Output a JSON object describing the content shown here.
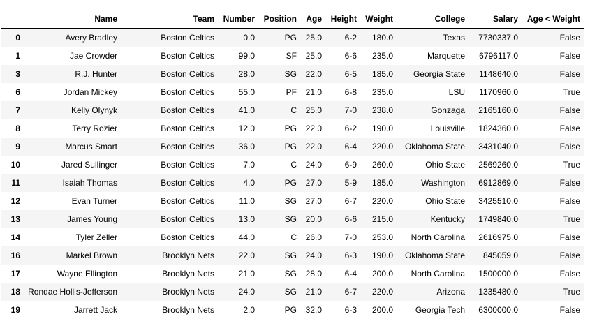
{
  "columns": [
    "",
    "Name",
    "Team",
    "Number",
    "Position",
    "Age",
    "Height",
    "Weight",
    "College",
    "Salary",
    "Age < Weight"
  ],
  "rows": [
    [
      "0",
      "Avery Bradley",
      "Boston Celtics",
      "0.0",
      "PG",
      "25.0",
      "6-2",
      "180.0",
      "Texas",
      "7730337.0",
      "False"
    ],
    [
      "1",
      "Jae Crowder",
      "Boston Celtics",
      "99.0",
      "SF",
      "25.0",
      "6-6",
      "235.0",
      "Marquette",
      "6796117.0",
      "False"
    ],
    [
      "3",
      "R.J. Hunter",
      "Boston Celtics",
      "28.0",
      "SG",
      "22.0",
      "6-5",
      "185.0",
      "Georgia State",
      "1148640.0",
      "False"
    ],
    [
      "6",
      "Jordan Mickey",
      "Boston Celtics",
      "55.0",
      "PF",
      "21.0",
      "6-8",
      "235.0",
      "LSU",
      "1170960.0",
      "True"
    ],
    [
      "7",
      "Kelly Olynyk",
      "Boston Celtics",
      "41.0",
      "C",
      "25.0",
      "7-0",
      "238.0",
      "Gonzaga",
      "2165160.0",
      "False"
    ],
    [
      "8",
      "Terry Rozier",
      "Boston Celtics",
      "12.0",
      "PG",
      "22.0",
      "6-2",
      "190.0",
      "Louisville",
      "1824360.0",
      "False"
    ],
    [
      "9",
      "Marcus Smart",
      "Boston Celtics",
      "36.0",
      "PG",
      "22.0",
      "6-4",
      "220.0",
      "Oklahoma State",
      "3431040.0",
      "False"
    ],
    [
      "10",
      "Jared Sullinger",
      "Boston Celtics",
      "7.0",
      "C",
      "24.0",
      "6-9",
      "260.0",
      "Ohio State",
      "2569260.0",
      "True"
    ],
    [
      "11",
      "Isaiah Thomas",
      "Boston Celtics",
      "4.0",
      "PG",
      "27.0",
      "5-9",
      "185.0",
      "Washington",
      "6912869.0",
      "False"
    ],
    [
      "12",
      "Evan Turner",
      "Boston Celtics",
      "11.0",
      "SG",
      "27.0",
      "6-7",
      "220.0",
      "Ohio State",
      "3425510.0",
      "False"
    ],
    [
      "13",
      "James Young",
      "Boston Celtics",
      "13.0",
      "SG",
      "20.0",
      "6-6",
      "215.0",
      "Kentucky",
      "1749840.0",
      "True"
    ],
    [
      "14",
      "Tyler Zeller",
      "Boston Celtics",
      "44.0",
      "C",
      "26.0",
      "7-0",
      "253.0",
      "North Carolina",
      "2616975.0",
      "False"
    ],
    [
      "16",
      "Markel Brown",
      "Brooklyn Nets",
      "22.0",
      "SG",
      "24.0",
      "6-3",
      "190.0",
      "Oklahoma State",
      "845059.0",
      "False"
    ],
    [
      "17",
      "Wayne Ellington",
      "Brooklyn Nets",
      "21.0",
      "SG",
      "28.0",
      "6-4",
      "200.0",
      "North Carolina",
      "1500000.0",
      "False"
    ],
    [
      "18",
      "Rondae Hollis-Jefferson",
      "Brooklyn Nets",
      "24.0",
      "SG",
      "21.0",
      "6-7",
      "220.0",
      "Arizona",
      "1335480.0",
      "True"
    ],
    [
      "19",
      "Jarrett Jack",
      "Brooklyn Nets",
      "2.0",
      "PG",
      "32.0",
      "6-3",
      "200.0",
      "Georgia Tech",
      "6300000.0",
      "False"
    ]
  ]
}
